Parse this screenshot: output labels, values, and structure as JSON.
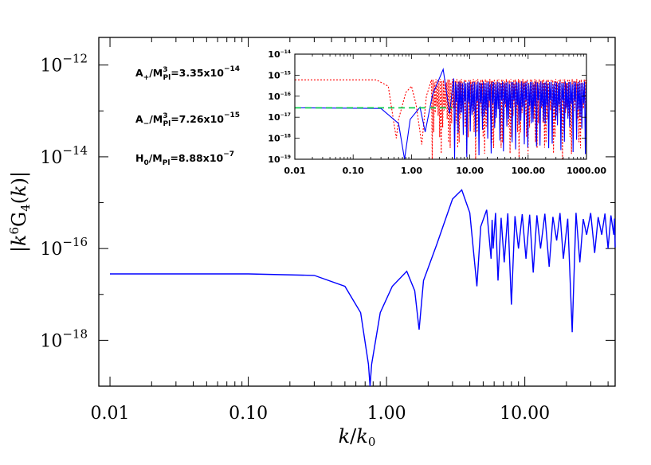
{
  "chart_data": [
    {
      "id": "main",
      "type": "line",
      "xscale": "log",
      "yscale": "log",
      "xlim": [
        0.0083,
        45
      ],
      "ylim": [
        1e-19,
        4e-12
      ],
      "xlabel": "k/k0",
      "ylabel": "|k6G4(k)|",
      "xticks": [
        0.01,
        0.1,
        1,
        10
      ],
      "xtick_labels": [
        "0.01",
        "0.10",
        "1.00",
        "10.00"
      ],
      "yticks": [
        1e-12,
        1e-14,
        1e-16,
        1e-18
      ],
      "ytick_labels": [
        {
          "base": "10",
          "exp": "−12"
        },
        {
          "base": "10",
          "exp": "−14"
        },
        {
          "base": "10",
          "exp": "−16"
        },
        {
          "base": "10",
          "exp": "−18"
        }
      ],
      "annotations": [
        {
          "pre": "A",
          "sub1": "+",
          "mid": "/M",
          "sup2": "3",
          "sub2": "Pl",
          "post": "=3.35x10",
          "exp": "−14"
        },
        {
          "pre": "A",
          "sub1": "−",
          "mid": "/M",
          "sup2": "3",
          "sub2": "Pl",
          "post": "=7.26x10",
          "exp": "−15"
        },
        {
          "pre": "H",
          "sub1": "0",
          "mid": "/M",
          "sup2": "",
          "sub2": "Pl",
          "post": "=8.88x10",
          "exp": "−7"
        }
      ],
      "series": [
        {
          "color": "#0000ff",
          "style": "solid",
          "plateau": 2.8e-17,
          "points": [
            [
              0.01,
              2.8e-17
            ],
            [
              0.1,
              2.8e-17
            ],
            [
              0.3,
              2.6e-17
            ],
            [
              0.5,
              1.5e-17
            ],
            [
              0.65,
              4e-18
            ],
            [
              0.74,
              3e-19
            ],
            [
              0.76,
              1e-19
            ],
            [
              0.78,
              3e-19
            ],
            [
              0.9,
              4e-18
            ],
            [
              1.1,
              1.5e-17
            ],
            [
              1.4,
              3.2e-17
            ],
            [
              1.6,
              1.2e-17
            ],
            [
              1.72,
              1.7e-18
            ],
            [
              1.85,
              2e-17
            ],
            [
              2.3,
              1.2e-16
            ],
            [
              3.0,
              1.2e-15
            ],
            [
              3.5,
              1.9e-15
            ],
            [
              4.0,
              6e-16
            ],
            [
              4.5,
              1.5e-17
            ],
            [
              4.8,
              3e-16
            ],
            [
              5.3,
              7e-16
            ],
            [
              5.7,
              6e-17
            ]
          ],
          "oscillation": {
            "from": 5.7,
            "to": 45,
            "upper": 6e-16,
            "dips": [
              [
                5.9,
                1e-16
              ],
              [
                6.4,
                2e-17
              ],
              [
                7.1,
                5e-17
              ],
              [
                8.0,
                6e-18
              ],
              [
                9.0,
                1e-16
              ],
              [
                10.2,
                6e-17
              ],
              [
                11.5,
                3e-17
              ],
              [
                13,
                1e-16
              ],
              [
                15,
                4e-17
              ],
              [
                17,
                1.5e-16
              ],
              [
                19,
                6e-17
              ],
              [
                22,
                1.5e-18
              ],
              [
                25,
                5e-17
              ],
              [
                28,
                2e-16
              ],
              [
                32,
                8e-17
              ],
              [
                36,
                2e-16
              ],
              [
                40,
                1e-16
              ],
              [
                44,
                2e-16
              ]
            ]
          }
        }
      ]
    },
    {
      "id": "inset",
      "type": "line",
      "xscale": "log",
      "yscale": "log",
      "xlim": [
        0.01,
        1000
      ],
      "ylim": [
        1e-19,
        1e-14
      ],
      "xticks": [
        0.01,
        0.1,
        1,
        10,
        100,
        1000
      ],
      "xtick_labels": [
        "0.01",
        "0.10",
        "1.00",
        "10.00",
        "100.00",
        "1000.00"
      ],
      "yticks": [
        1e-14,
        1e-15,
        1e-16,
        1e-17,
        1e-18,
        1e-19
      ],
      "ytick_labels": [
        {
          "base": "10",
          "exp": "−14"
        },
        {
          "base": "10",
          "exp": "−15"
        },
        {
          "base": "10",
          "exp": "−16"
        },
        {
          "base": "10",
          "exp": "−17"
        },
        {
          "base": "10",
          "exp": "−18"
        },
        {
          "base": "10",
          "exp": "−19"
        }
      ],
      "series": [
        {
          "color": "#ff0000",
          "style": "dotted",
          "plateau": 6e-16
        },
        {
          "color": "#00cc44",
          "style": "dashed",
          "plateau": 2.8e-17
        },
        {
          "color": "#0000ff",
          "style": "solid",
          "plateau": 2.8e-17
        }
      ]
    }
  ]
}
